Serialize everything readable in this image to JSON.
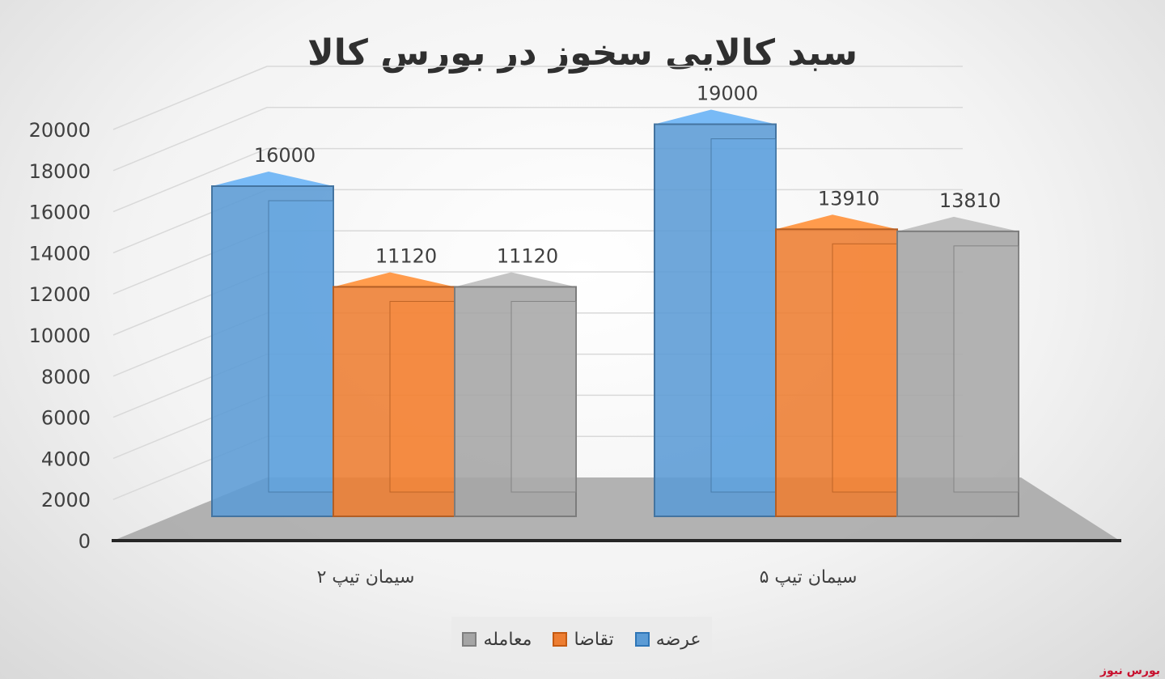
{
  "chart_data": {
    "type": "bar",
    "title": "سبد کالایی سخوز در بورس کالا",
    "categories": [
      "سیمان تیپ ۲",
      "سیمان تیپ ۵"
    ],
    "series": [
      {
        "name": "عرضه",
        "values": [
          16000,
          19000
        ],
        "color": "#5b9bd5"
      },
      {
        "name": "تقاضا",
        "values": [
          11120,
          13910
        ],
        "color": "#ed7d31"
      },
      {
        "name": "معامله",
        "values": [
          11120,
          13810
        ],
        "color": "#a5a5a5"
      }
    ],
    "ylim": [
      0,
      20000
    ],
    "yticks": [
      0,
      2000,
      4000,
      6000,
      8000,
      10000,
      12000,
      14000,
      16000,
      18000,
      20000
    ],
    "grid": true,
    "legend_position": "bottom",
    "style": "3d-clustered-column"
  },
  "watermark": {
    "text": "بورس نیوز",
    "color": "#c8102e"
  }
}
